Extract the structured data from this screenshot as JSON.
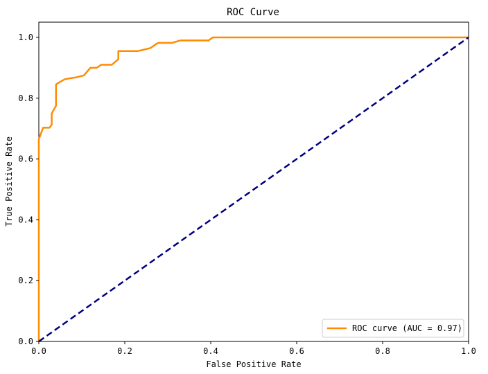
{
  "chart_data": {
    "type": "line",
    "title": "ROC Curve",
    "xlabel": "False Positive Rate",
    "ylabel": "True Positive Rate",
    "xlim": [
      0.0,
      1.0
    ],
    "ylim": [
      0.0,
      1.05
    ],
    "xticks": [
      "0.0",
      "0.2",
      "0.4",
      "0.6",
      "0.8",
      "1.0"
    ],
    "yticks": [
      "0.0",
      "0.2",
      "0.4",
      "0.6",
      "0.8",
      "1.0"
    ],
    "grid": false,
    "legend_position": "lower-right",
    "series": [
      {
        "name": "ROC curve (AUC = 0.97)",
        "color": "#ff8c00",
        "style": "solid",
        "x": [
          0.0,
          0.0,
          0.01,
          0.01,
          0.025,
          0.03,
          0.03,
          0.04,
          0.04,
          0.045,
          0.06,
          0.07,
          0.085,
          0.105,
          0.12,
          0.125,
          0.135,
          0.145,
          0.165,
          0.17,
          0.185,
          0.185,
          0.2,
          0.23,
          0.24,
          0.26,
          0.275,
          0.28,
          0.305,
          0.31,
          0.33,
          0.375,
          0.395,
          0.405,
          0.42,
          0.45,
          0.6,
          0.8,
          1.0
        ],
        "y": [
          0.0,
          0.665,
          0.703,
          0.703,
          0.703,
          0.713,
          0.75,
          0.775,
          0.845,
          0.85,
          0.862,
          0.865,
          0.868,
          0.875,
          0.9,
          0.9,
          0.9,
          0.91,
          0.91,
          0.91,
          0.928,
          0.955,
          0.955,
          0.955,
          0.958,
          0.965,
          0.98,
          0.982,
          0.982,
          0.982,
          0.99,
          0.99,
          0.99,
          1.0,
          1.0,
          1.0,
          1.0,
          1.0,
          1.0
        ]
      },
      {
        "name": "",
        "color": "#000080",
        "style": "dashed",
        "x": [
          0.0,
          1.0
        ],
        "y": [
          0.0,
          1.0
        ]
      }
    ]
  }
}
